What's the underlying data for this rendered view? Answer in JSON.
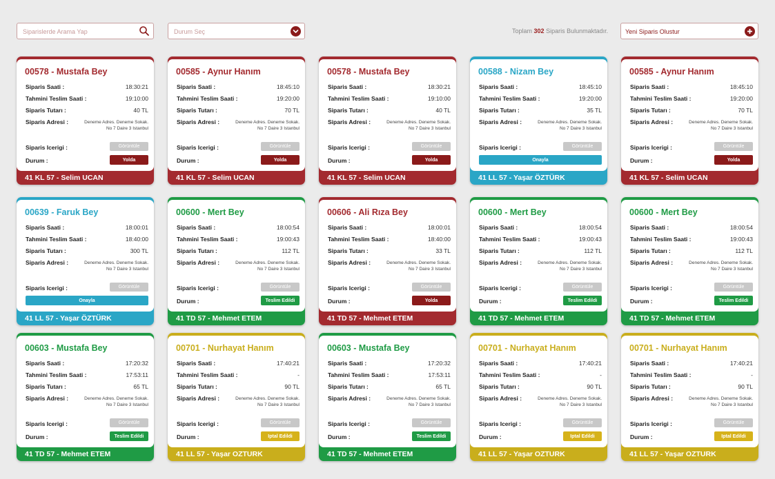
{
  "search": {
    "placeholder": "Siparislerde Arama Yap",
    "icon": "search-icon"
  },
  "status_filter": {
    "label": "Durum Seç",
    "icon": "chevron-down-icon"
  },
  "summary": {
    "prefix": "Toplam",
    "count": "302",
    "suffix": "Siparis Bulunmaktadır."
  },
  "new_order": {
    "label": "Yeni Siparis Olustur",
    "icon": "plus-icon"
  },
  "labels": {
    "order_time": "Siparis Saati :",
    "est_delivery": "Tahmini Teslim Saati :",
    "order_total": "Siparis Tutarı :",
    "order_address": "Siparis Adresi :",
    "order_content": "Siparis Icerigi :",
    "status": "Durum :",
    "view": "Görüntüle"
  },
  "colors": {
    "red": "#a32a2f",
    "red_btn": "#8b1a1a",
    "blue": "#2aa6c6",
    "green": "#1f9b45",
    "yellow": "#c9ae1c",
    "btn_yellow": "#d6b21a"
  },
  "orders": [
    {
      "title": "00578 - Mustafa Bey",
      "theme": "red",
      "order_time": "18:30:21",
      "est_delivery": "19:10:00",
      "total": "40 TL",
      "address": "Deneme Adres. Deneme Sokak. No 7 Daire 3 Istanbul",
      "status": "Yolda",
      "status_theme": "red",
      "wide": false,
      "footer": "41 KL 57 - Selim UCAN"
    },
    {
      "title": "00585 - Aynur Hanım",
      "theme": "red",
      "order_time": "18:45:10",
      "est_delivery": "19:20:00",
      "total": "70 TL",
      "address": "Deneme Adres. Deneme Sokak. No 7 Daire 3 Istanbul",
      "status": "Yolda",
      "status_theme": "red",
      "wide": false,
      "footer": "41 KL 57 - Selim UCAN"
    },
    {
      "title": "00578 - Mustafa Bey",
      "theme": "red",
      "order_time": "18:30:21",
      "est_delivery": "19:10:00",
      "total": "40 TL",
      "address": "Deneme Adres. Deneme Sokak. No 7 Daire 3 Istanbul",
      "status": "Yolda",
      "status_theme": "red",
      "wide": false,
      "footer": "41 KL 57 - Selim UCAN"
    },
    {
      "title": "00588 - Nizam Bey",
      "theme": "blue",
      "order_time": "18:45:10",
      "est_delivery": "19:20:00",
      "total": "35 TL",
      "address": "Deneme Adres. Deneme Sokak. No 7 Daire 3 Istanbul",
      "status": "Onayla",
      "status_theme": "blue",
      "wide": true,
      "footer": "41 LL 57 - Yaşar ÖZTÜRK"
    },
    {
      "title": "00585 - Aynur Hanım",
      "theme": "red",
      "order_time": "18:45:10",
      "est_delivery": "19:20:00",
      "total": "70 TL",
      "address": "Deneme Adres. Deneme Sokak. No 7 Daire 3 Istanbul",
      "status": "Yolda",
      "status_theme": "red",
      "wide": false,
      "footer": "41 KL 57 - Selim UCAN"
    },
    {
      "title": "00639 - Faruk Bey",
      "theme": "blue",
      "order_time": "18:00:01",
      "est_delivery": "18:40:00",
      "total": "300 TL",
      "address": "Deneme Adres. Deneme Sokak. No 7 Daire 3 Istanbul",
      "status": "Onayla",
      "status_theme": "blue",
      "wide": true,
      "footer": "41 LL 57 - Yaşar ÖZTÜRK"
    },
    {
      "title": "00600 - Mert Bey",
      "theme": "green",
      "order_time": "18:00:54",
      "est_delivery": "19:00:43",
      "total": "112 TL",
      "address": "Deneme Adres. Deneme Sokak. No 7 Daire 3 Istanbul",
      "status": "Teslim Edildi",
      "status_theme": "green",
      "wide": false,
      "footer": "41 TD 57 - Mehmet ETEM"
    },
    {
      "title": "00606 - Ali Rıza Bey",
      "theme": "red",
      "order_time": "18:00:01",
      "est_delivery": "18:40:00",
      "total": "33 TL",
      "address": "Deneme Adres. Deneme Sokak. No 7 Daire 3 Istanbul",
      "status": "Yolda",
      "status_theme": "red",
      "wide": false,
      "footer": "41 TD 57 - Mehmet ETEM"
    },
    {
      "title": "00600 - Mert Bey",
      "theme": "green",
      "order_time": "18:00:54",
      "est_delivery": "19:00:43",
      "total": "112 TL",
      "address": "Deneme Adres. Deneme Sokak. No 7 Daire 3 Istanbul",
      "status": "Teslim Edildi",
      "status_theme": "green",
      "wide": false,
      "footer": "41 TD 57 - Mehmet ETEM"
    },
    {
      "title": "00600 - Mert Bey",
      "theme": "green",
      "order_time": "18:00:54",
      "est_delivery": "19:00:43",
      "total": "112 TL",
      "address": "Deneme Adres. Deneme Sokak. No 7 Daire 3 Istanbul",
      "status": "Teslim Edildi",
      "status_theme": "green",
      "wide": false,
      "footer": "41 TD 57 - Mehmet ETEM"
    },
    {
      "title": "00603 - Mustafa Bey",
      "theme": "green",
      "order_time": "17:20:32",
      "est_delivery": "17:53:11",
      "total": "65 TL",
      "address": "Deneme Adres. Deneme Sokak. No 7 Daire 3 Istanbul",
      "status": "Teslim Edildi",
      "status_theme": "green",
      "wide": false,
      "footer": "41 TD 57 - Mehmet ETEM"
    },
    {
      "title": "00701 - Nurhayat Hanım",
      "theme": "yellow",
      "order_time": "17:40:21",
      "est_delivery": "-",
      "total": "90 TL",
      "address": "Deneme Adres. Deneme Sokak. No 7 Daire 3 Istanbul",
      "status": "Iptal Edildi",
      "status_theme": "yellow",
      "wide": false,
      "footer": "41 LL 57 - Yaşar OZTURK"
    },
    {
      "title": "00603 - Mustafa Bey",
      "theme": "green",
      "order_time": "17:20:32",
      "est_delivery": "17:53:11",
      "total": "65 TL",
      "address": "Deneme Adres. Deneme Sokak. No 7 Daire 3 Istanbul",
      "status": "Teslim Edildi",
      "status_theme": "green",
      "wide": false,
      "footer": "41 TD 57 - Mehmet ETEM"
    },
    {
      "title": "00701 - Nurhayat Hanım",
      "theme": "yellow",
      "order_time": "17:40:21",
      "est_delivery": "-",
      "total": "90 TL",
      "address": "Deneme Adres. Deneme Sokak. No 7 Daire 3 Istanbul",
      "status": "Iptal Edildi",
      "status_theme": "yellow",
      "wide": false,
      "footer": "41 LL 57 - Yaşar OZTURK"
    },
    {
      "title": "00701 - Nurhayat Hanım",
      "theme": "yellow",
      "order_time": "17:40:21",
      "est_delivery": "-",
      "total": "90 TL",
      "address": "Deneme Adres. Deneme Sokak. No 7 Daire 3 Istanbul",
      "status": "Iptal Edildi",
      "status_theme": "yellow",
      "wide": false,
      "footer": "41 LL 57 - Yaşar OZTURK"
    }
  ]
}
